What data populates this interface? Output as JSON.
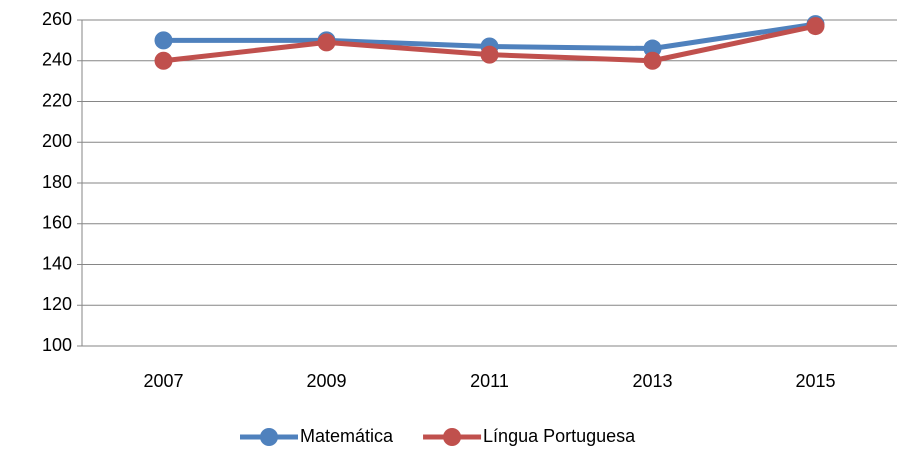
{
  "chart_data": {
    "type": "line",
    "categories": [
      "2007",
      "2009",
      "2011",
      "2013",
      "2015"
    ],
    "series": [
      {
        "name": "Matemática",
        "color": "#4f81bd",
        "values": [
          250,
          250,
          247,
          246,
          258
        ]
      },
      {
        "name": "Língua Portuguesa",
        "color": "#c0504d",
        "values": [
          240,
          249,
          243,
          240,
          257
        ]
      }
    ],
    "ylim": [
      100,
      260
    ],
    "yticks": [
      100,
      120,
      140,
      160,
      180,
      200,
      220,
      240,
      260
    ],
    "grid": true,
    "legend": "bottom"
  }
}
